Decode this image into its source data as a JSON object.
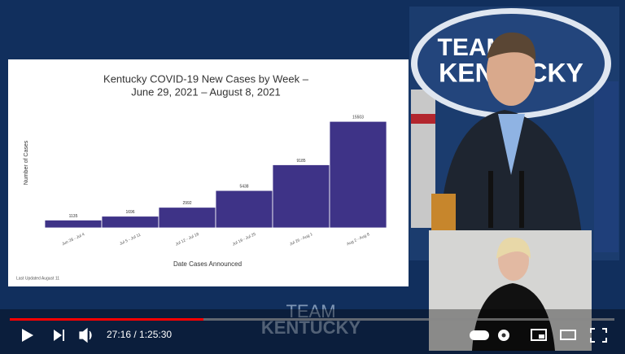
{
  "chart_data": {
    "type": "bar",
    "title": "Kentucky COVID-19 New Cases by Week –",
    "subtitle": "June 29, 2021 – August 8, 2021",
    "y_label": "Number of Cases",
    "x_label": "Date Cases Announced",
    "footnote": "Last Updated August 11",
    "categories": [
      "Jun 28 - Jul 4",
      "Jul 5 - Jul 11",
      "Jul 12 - Jul 18",
      "Jul 19 - Jul 25",
      "Jul 26 - Aug 1",
      "Aug 2 - Aug 8"
    ],
    "values": [
      1135,
      1696,
      2992,
      5438,
      9185,
      15503
    ],
    "color": "#3e3387",
    "ylim": [
      0,
      16000
    ]
  },
  "backdrop": {
    "logo_top": "TEAM",
    "logo_bottom": "KENTUCKY"
  },
  "watermark": {
    "top": "TEAM",
    "bottom": "KENTUCKY"
  },
  "player": {
    "time": "27:16 / 1:25:30"
  }
}
